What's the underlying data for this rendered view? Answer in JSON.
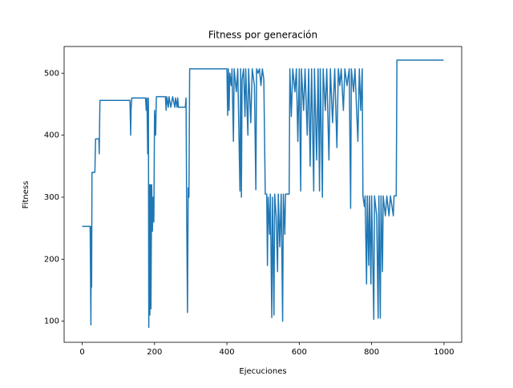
{
  "chart_data": {
    "type": "line",
    "title": "Fitness por generación",
    "x_label": "Ejecuciones",
    "y_label": "Fitness",
    "color": "#1f77b4",
    "grid": false,
    "xlim": [
      -50,
      1049
    ],
    "ylim": [
      66,
      543
    ],
    "xticks": [
      0,
      200,
      400,
      600,
      800,
      1000
    ],
    "yticks": [
      100,
      200,
      300,
      400,
      500
    ],
    "x": [
      0,
      22,
      24,
      25,
      26,
      27,
      35,
      37,
      46,
      47,
      49,
      132,
      134,
      135,
      137,
      175,
      177,
      179,
      181,
      183,
      184,
      186,
      187,
      189,
      190,
      192,
      194,
      196,
      198,
      200,
      203,
      205,
      230,
      232,
      234,
      238,
      240,
      245,
      250,
      256,
      258,
      262,
      264,
      266,
      285,
      287,
      289,
      291,
      293,
      295,
      297,
      400,
      402,
      404,
      406,
      408,
      412,
      414,
      418,
      420,
      426,
      430,
      436,
      438,
      440,
      442,
      446,
      450,
      452,
      458,
      460,
      466,
      470,
      476,
      480,
      482,
      486,
      490,
      494,
      498,
      502,
      506,
      510,
      512,
      514,
      518,
      520,
      524,
      526,
      530,
      532,
      536,
      540,
      542,
      546,
      550,
      554,
      556,
      560,
      562,
      572,
      574,
      578,
      582,
      588,
      592,
      596,
      600,
      604,
      606,
      612,
      616,
      622,
      626,
      630,
      634,
      640,
      642,
      648,
      652,
      656,
      658,
      664,
      666,
      672,
      676,
      682,
      686,
      692,
      698,
      704,
      708,
      712,
      716,
      722,
      726,
      732,
      738,
      742,
      744,
      750,
      754,
      762,
      766,
      770,
      774,
      776,
      780,
      782,
      786,
      788,
      792,
      794,
      798,
      800,
      806,
      808,
      814,
      818,
      820,
      824,
      826,
      830,
      832,
      838,
      842,
      848,
      852,
      860,
      862,
      868,
      870,
      999
    ],
    "values": [
      253,
      253,
      94,
      253,
      155,
      340,
      340,
      394,
      394,
      370,
      456,
      456,
      400,
      440,
      460,
      460,
      440,
      460,
      370,
      460,
      90,
      320,
      110,
      320,
      120,
      320,
      245,
      300,
      260,
      440,
      400,
      462,
      462,
      440,
      462,
      445,
      462,
      445,
      462,
      445,
      460,
      445,
      460,
      445,
      445,
      460,
      255,
      114,
      315,
      300,
      507,
      507,
      432,
      507,
      440,
      500,
      480,
      507,
      390,
      507,
      470,
      507,
      310,
      507,
      300,
      490,
      507,
      430,
      507,
      400,
      507,
      420,
      507,
      480,
      312,
      507,
      500,
      507,
      480,
      507,
      490,
      305,
      305,
      190,
      300,
      240,
      305,
      106,
      300,
      110,
      305,
      270,
      180,
      305,
      220,
      305,
      100,
      305,
      240,
      305,
      305,
      507,
      430,
      507,
      470,
      507,
      390,
      507,
      310,
      507,
      440,
      507,
      400,
      507,
      350,
      507,
      310,
      507,
      360,
      507,
      310,
      507,
      300,
      507,
      440,
      507,
      360,
      507,
      420,
      507,
      380,
      507,
      480,
      507,
      440,
      507,
      480,
      507,
      282,
      507,
      470,
      507,
      390,
      507,
      440,
      507,
      302,
      285,
      302,
      160,
      302,
      190,
      302,
      160,
      302,
      103,
      302,
      270,
      105,
      302,
      105,
      302,
      180,
      302,
      270,
      302,
      270,
      302,
      270,
      302,
      302,
      521,
      521
    ]
  }
}
